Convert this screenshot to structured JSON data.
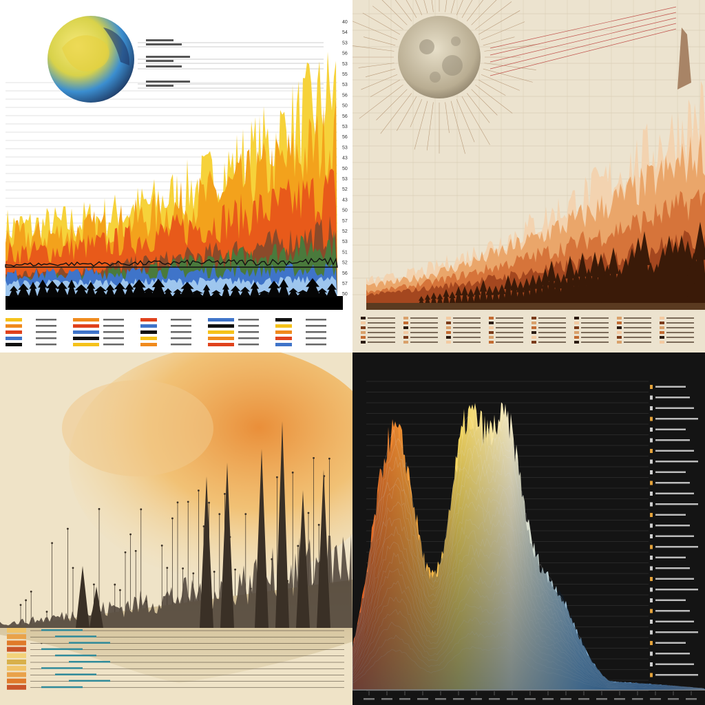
{
  "grid": {
    "panels": [
      {
        "id": "top-left",
        "subject": "globe-and-flame-area-chart",
        "palette": [
          "#f5c21a",
          "#f08a1c",
          "#e0421c",
          "#4a7a3c",
          "#3f74c9",
          "#000000"
        ]
      },
      {
        "id": "top-right",
        "subject": "moon-and-forest-area-chart",
        "palette": [
          "#f3c9a0",
          "#e08a4a",
          "#b0542a",
          "#3a1a08"
        ]
      },
      {
        "id": "bottom-left",
        "subject": "watercolor-spire-landscape-chart",
        "palette": [
          "#f0c468",
          "#e07a2a",
          "#b54a1c",
          "#3a3026"
        ]
      },
      {
        "id": "bottom-right",
        "subject": "layered-mountain-ridge-chart",
        "palette": [
          "#e0541c",
          "#f3c23a",
          "#f4ebc8",
          "#4a8ad0",
          "#1f5fa8",
          "#141414"
        ]
      }
    ]
  },
  "top_left": {
    "axis_ticks": [
      "40",
      "54",
      "53",
      "56",
      "53",
      "55",
      "53",
      "56",
      "50",
      "56",
      "53",
      "56",
      "53",
      "43",
      "50",
      "53",
      "52",
      "43",
      "50",
      "57",
      "52",
      "53",
      "51",
      "52",
      "56",
      "57",
      "50"
    ]
  }
}
